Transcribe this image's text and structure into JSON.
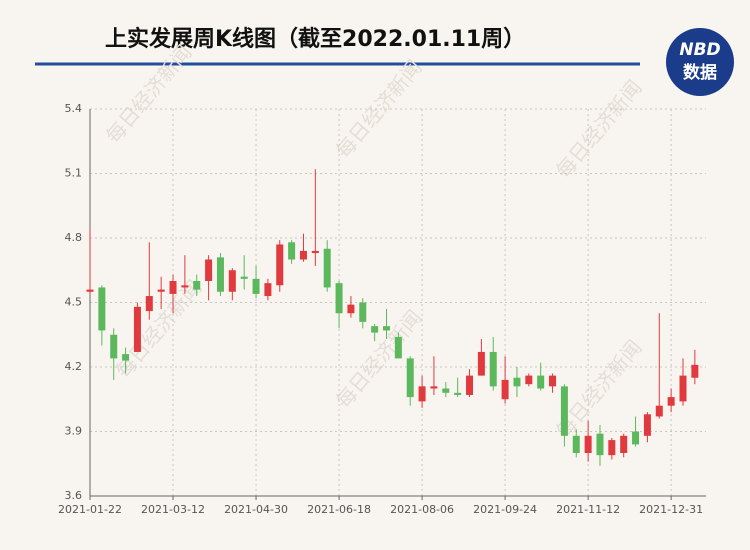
{
  "chart_data": {
    "type": "candlestick",
    "title": "上实发展周K线图（截至2022.01.11周）",
    "logo": {
      "top": "NBD",
      "bottom": "数据"
    },
    "watermark": "每日经济新闻",
    "categories": [
      "2021-01-22",
      null,
      null,
      null,
      null,
      null,
      null,
      "2021-03-12",
      null,
      null,
      null,
      null,
      null,
      null,
      "2021-04-30",
      null,
      null,
      null,
      null,
      null,
      null,
      "2021-06-18",
      null,
      null,
      null,
      null,
      null,
      null,
      "2021-08-06",
      null,
      null,
      null,
      null,
      null,
      null,
      "2021-09-24",
      null,
      null,
      null,
      null,
      null,
      null,
      "2021-11-12",
      null,
      null,
      null,
      null,
      null,
      null,
      "2021-12-31",
      null,
      null
    ],
    "open": [
      4.55,
      4.57,
      4.35,
      4.26,
      4.27,
      4.46,
      4.55,
      4.54,
      4.57,
      4.6,
      4.6,
      4.71,
      4.55,
      4.62,
      4.61,
      4.53,
      4.58,
      4.78,
      4.7,
      4.73,
      4.75,
      4.59,
      4.45,
      4.5,
      4.39,
      4.39,
      4.34,
      4.24,
      4.04,
      4.1,
      4.1,
      4.08,
      4.07,
      4.16,
      4.27,
      4.05,
      4.15,
      4.12,
      4.16,
      4.11,
      4.11,
      3.88,
      3.8,
      3.89,
      3.79,
      3.8,
      3.9,
      3.88,
      3.97,
      4.02,
      4.04,
      4.15
    ],
    "high": [
      4.84,
      4.58,
      4.38,
      4.29,
      4.5,
      4.78,
      4.62,
      4.63,
      4.72,
      4.63,
      4.72,
      4.73,
      4.66,
      4.72,
      4.67,
      4.61,
      4.79,
      4.79,
      4.82,
      5.12,
      4.79,
      4.6,
      4.53,
      4.52,
      4.4,
      4.47,
      4.36,
      4.25,
      4.16,
      4.25,
      4.13,
      4.15,
      4.19,
      4.33,
      4.34,
      4.25,
      4.2,
      4.17,
      4.22,
      4.17,
      4.12,
      3.91,
      3.95,
      3.93,
      3.87,
      3.89,
      3.97,
      3.99,
      4.45,
      4.1,
      4.24,
      4.28
    ],
    "low": [
      4.54,
      4.3,
      4.14,
      4.17,
      4.27,
      4.42,
      4.47,
      4.45,
      4.54,
      4.53,
      4.51,
      4.53,
      4.51,
      4.56,
      4.52,
      4.51,
      4.55,
      4.68,
      4.69,
      4.67,
      4.55,
      4.38,
      4.43,
      4.38,
      4.32,
      4.33,
      4.24,
      4.02,
      4.01,
      4.07,
      4.06,
      4.06,
      4.06,
      4.16,
      4.09,
      4.03,
      4.06,
      4.11,
      4.09,
      4.08,
      3.83,
      3.78,
      3.76,
      3.74,
      3.77,
      3.78,
      3.83,
      3.85,
      3.96,
      3.99,
      4.02,
      4.12
    ],
    "close": [
      4.56,
      4.37,
      4.24,
      4.23,
      4.48,
      4.53,
      4.56,
      4.6,
      4.58,
      4.56,
      4.7,
      4.55,
      4.65,
      4.61,
      4.54,
      4.59,
      4.77,
      4.7,
      4.74,
      4.74,
      4.57,
      4.45,
      4.49,
      4.41,
      4.36,
      4.37,
      4.24,
      4.06,
      4.11,
      4.11,
      4.08,
      4.07,
      4.16,
      4.27,
      4.11,
      4.14,
      4.11,
      4.16,
      4.1,
      4.16,
      3.88,
      3.8,
      3.88,
      3.79,
      3.86,
      3.88,
      3.84,
      3.98,
      4.02,
      4.06,
      4.16,
      4.21
    ],
    "up_color": "#e0393e",
    "down_color": "#5cb85c",
    "ylim": [
      3.6,
      5.4
    ],
    "yticks": [
      3.6,
      3.9,
      4.2,
      4.5,
      4.8,
      5.1,
      5.4
    ],
    "grid": true
  }
}
